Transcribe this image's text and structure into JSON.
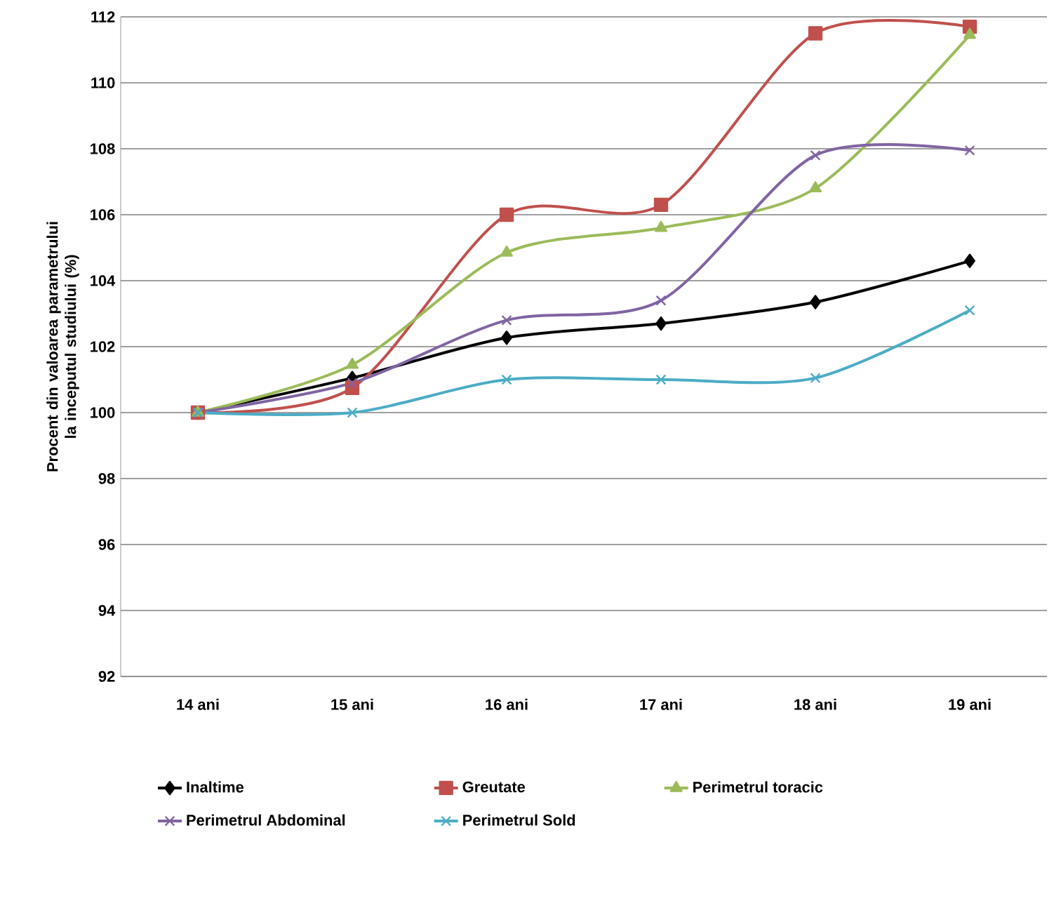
{
  "chart_data": {
    "type": "line",
    "ylabel": "Procent din valoarea parametrului la inceputul studiului (%)",
    "categories": [
      "14 ani",
      "15 ani",
      "16 ani",
      "17 ani",
      "18 ani",
      "19 ani"
    ],
    "series": [
      {
        "name": "Inaltime",
        "color": "#000000",
        "marker": "diamond",
        "values": [
          100,
          101.05,
          102.27,
          102.7,
          103.35,
          104.6
        ]
      },
      {
        "name": "Greutate",
        "color": "#c0504d",
        "marker": "square",
        "values": [
          100,
          100.75,
          106,
          106.3,
          111.5,
          111.7
        ]
      },
      {
        "name": "Perimetrul toracic",
        "color": "#9bbb59",
        "marker": "triangle",
        "values": [
          100,
          101.45,
          104.85,
          105.6,
          106.8,
          111.45
        ]
      },
      {
        "name": "Perimetrul Abdominal",
        "color": "#8064a2",
        "marker": "cross",
        "values": [
          100,
          100.9,
          102.8,
          103.4,
          107.8,
          107.95
        ]
      },
      {
        "name": "Perimetrul Sold",
        "color": "#4bacc6",
        "marker": "cross",
        "values": [
          100,
          100,
          101,
          101,
          101.05,
          103.1
        ]
      }
    ],
    "ylim": [
      92,
      112
    ],
    "yticks": [
      92,
      94,
      96,
      98,
      100,
      102,
      104,
      106,
      108,
      110,
      112
    ],
    "grid": "y",
    "legend": "bottom",
    "line_style": "solid"
  }
}
